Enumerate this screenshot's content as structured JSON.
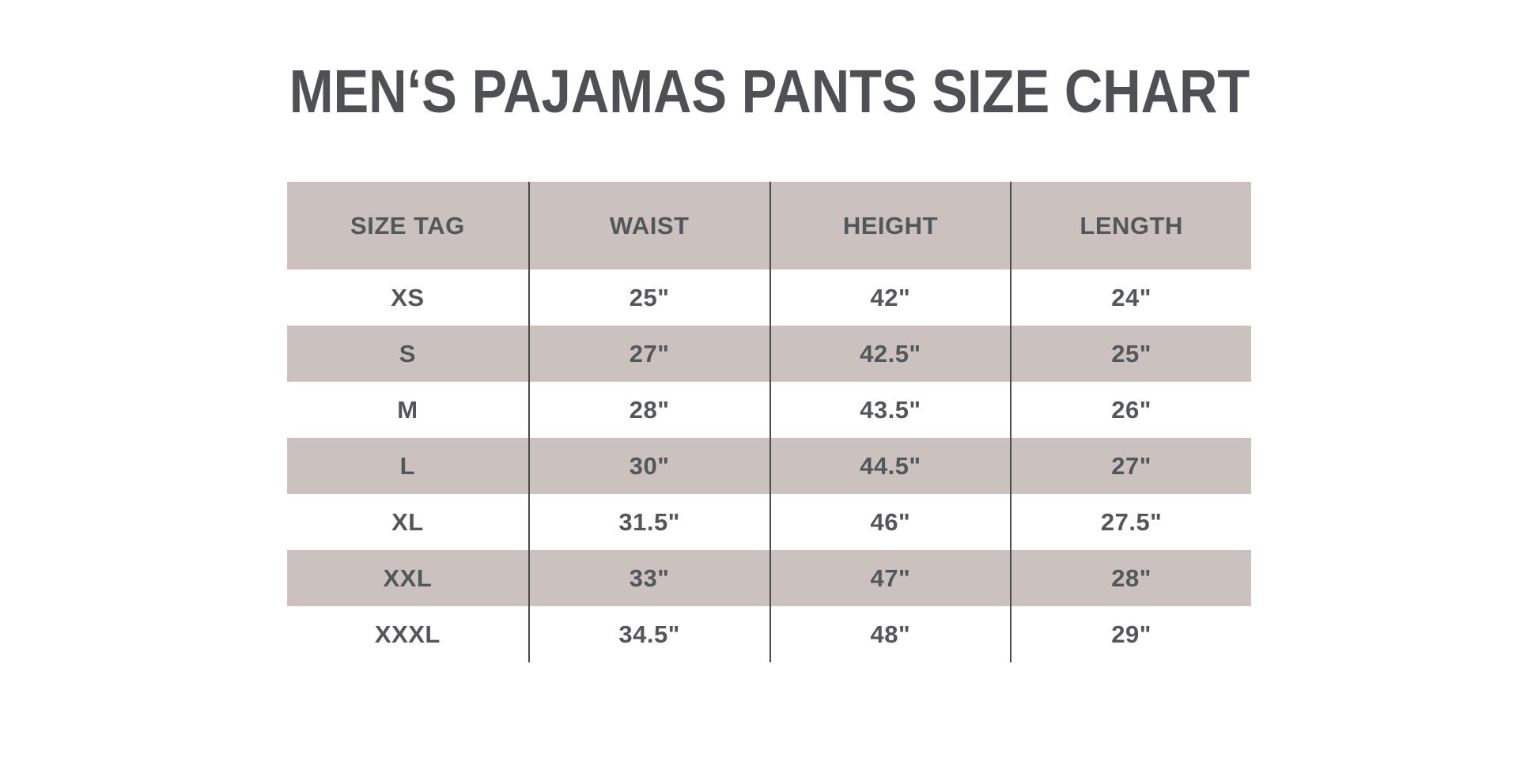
{
  "title": "MEN‘S PAJAMAS PANTS SIZE CHART",
  "colors": {
    "background": "#ffffff",
    "stripe": "#cbc2bf",
    "table_text": "#55565a",
    "title_text": "#4f5053",
    "column_divider": "#4a4a4a"
  },
  "chart_data": {
    "type": "table",
    "title": "MEN‘S PAJAMAS PANTS SIZE CHART",
    "columns": [
      "SIZE TAG",
      "WAIST",
      "HEIGHT",
      "LENGTH"
    ],
    "rows": [
      [
        "XS",
        "25\"",
        "42\"",
        "24\""
      ],
      [
        "S",
        "27\"",
        "42.5\"",
        "25\""
      ],
      [
        "M",
        "28\"",
        "43.5\"",
        "26\""
      ],
      [
        "L",
        "30\"",
        "44.5\"",
        "27\""
      ],
      [
        "XL",
        "31.5\"",
        "46\"",
        "27.5\""
      ],
      [
        "XXL",
        "33\"",
        "47\"",
        "28\""
      ],
      [
        "XXXL",
        "34.5\"",
        "48\"",
        "29\""
      ]
    ],
    "layout": {
      "striped_rows": [
        1,
        3,
        5
      ],
      "header_shaded": true,
      "column_dividers": true,
      "outer_border": false,
      "units": "inches"
    }
  }
}
